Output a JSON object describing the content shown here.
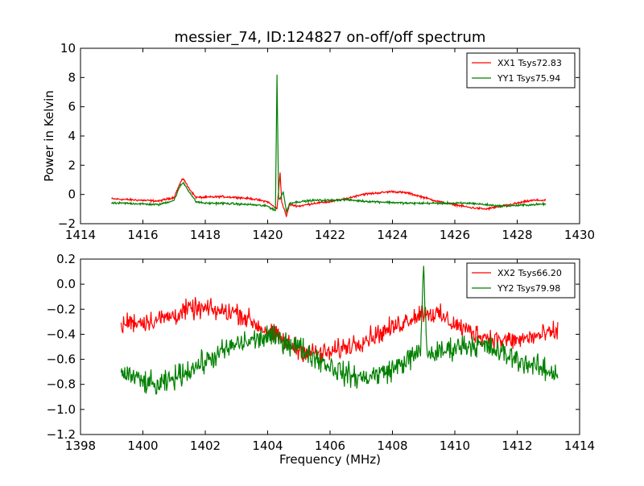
{
  "title": "messier_74, ID:124827 on-off/off spectrum",
  "chart_data": [
    {
      "type": "line",
      "title": "messier_74, ID:124827 on-off/off spectrum",
      "xlabel": "",
      "ylabel": "Power in Kelvin",
      "xlim": [
        1414,
        1430
      ],
      "ylim": [
        -2,
        10
      ],
      "xticks": [
        "1414",
        "1416",
        "1418",
        "1420",
        "1422",
        "1424",
        "1426",
        "1428",
        "1430"
      ],
      "yticks": [
        "−2",
        "0",
        "2",
        "4",
        "6",
        "8",
        "10"
      ],
      "grid": false,
      "legend_position": "top-right",
      "series": [
        {
          "name": "XX1 Tsys72.83",
          "color": "#ff0000",
          "x": [
            1415.0,
            1415.5,
            1416.0,
            1416.5,
            1417.0,
            1417.2,
            1417.3,
            1417.45,
            1417.7,
            1418.0,
            1418.5,
            1419.0,
            1419.5,
            1420.0,
            1420.3,
            1420.4,
            1420.45,
            1420.6,
            1420.7,
            1421.0,
            1421.5,
            1422.0,
            1422.5,
            1423.0,
            1423.5,
            1424.0,
            1424.5,
            1425.0,
            1425.5,
            1426.0,
            1426.5,
            1427.0,
            1427.5,
            1428.0,
            1428.5,
            1428.9
          ],
          "y": [
            -0.3,
            -0.35,
            -0.4,
            -0.45,
            -0.2,
            0.8,
            1.1,
            0.5,
            -0.2,
            -0.2,
            -0.15,
            -0.2,
            -0.3,
            -0.5,
            -1.0,
            1.5,
            -0.5,
            -1.5,
            -0.7,
            -0.8,
            -0.6,
            -0.5,
            -0.3,
            0.0,
            0.1,
            0.2,
            0.1,
            -0.2,
            -0.5,
            -0.7,
            -0.9,
            -1.0,
            -0.8,
            -0.6,
            -0.4,
            -0.4
          ]
        },
        {
          "name": "YY1 Tsys75.94",
          "color": "#008000",
          "x": [
            1415.0,
            1415.5,
            1416.0,
            1416.5,
            1417.0,
            1417.2,
            1417.3,
            1417.45,
            1417.7,
            1418.0,
            1418.5,
            1419.0,
            1419.5,
            1420.0,
            1420.25,
            1420.3,
            1420.35,
            1420.4,
            1420.5,
            1420.6,
            1420.7,
            1421.0,
            1421.5,
            1422.0,
            1422.5,
            1423.0,
            1423.5,
            1424.0,
            1424.5,
            1425.0,
            1425.5,
            1426.0,
            1426.5,
            1427.0,
            1427.5,
            1428.0,
            1428.5,
            1428.9
          ],
          "y": [
            -0.6,
            -0.6,
            -0.65,
            -0.7,
            -0.4,
            0.6,
            0.8,
            0.3,
            -0.5,
            -0.6,
            -0.6,
            -0.65,
            -0.7,
            -0.8,
            -1.1,
            8.2,
            -0.2,
            -0.3,
            0.2,
            -1.2,
            -0.6,
            -0.5,
            -0.4,
            -0.4,
            -0.35,
            -0.45,
            -0.5,
            -0.55,
            -0.6,
            -0.6,
            -0.6,
            -0.6,
            -0.6,
            -0.7,
            -0.8,
            -0.75,
            -0.7,
            -0.65
          ]
        }
      ]
    },
    {
      "type": "line",
      "title": "",
      "xlabel": "Frequency (MHz)",
      "ylabel": "",
      "xlim": [
        1398,
        1414
      ],
      "ylim": [
        -1.2,
        0.2
      ],
      "xticks": [
        "1398",
        "1400",
        "1402",
        "1404",
        "1406",
        "1408",
        "1410",
        "1412",
        "1414"
      ],
      "yticks": [
        "−1.2",
        "−1.0",
        "−0.8",
        "−0.6",
        "−0.4",
        "−0.2",
        "0.0",
        "0.2"
      ],
      "grid": false,
      "legend_position": "top-right",
      "series": [
        {
          "name": "XX2 Tsys66.20",
          "color": "#ff0000",
          "x": [
            1399.3,
            1399.5,
            1400.0,
            1400.5,
            1401.0,
            1401.5,
            1402.0,
            1402.5,
            1403.0,
            1403.5,
            1404.0,
            1404.5,
            1405.0,
            1405.5,
            1406.0,
            1406.5,
            1407.0,
            1407.5,
            1408.0,
            1408.5,
            1409.0,
            1409.5,
            1410.0,
            1410.5,
            1411.0,
            1411.5,
            1412.0,
            1412.5,
            1413.0,
            1413.3
          ],
          "y": [
            -0.35,
            -0.3,
            -0.3,
            -0.28,
            -0.25,
            -0.2,
            -0.2,
            -0.22,
            -0.22,
            -0.3,
            -0.38,
            -0.45,
            -0.52,
            -0.55,
            -0.55,
            -0.5,
            -0.45,
            -0.4,
            -0.35,
            -0.28,
            -0.22,
            -0.25,
            -0.32,
            -0.38,
            -0.42,
            -0.45,
            -0.45,
            -0.42,
            -0.4,
            -0.38
          ],
          "noise": 0.07
        },
        {
          "name": "YY2 Tsys79.98",
          "color": "#008000",
          "x": [
            1399.3,
            1399.5,
            1400.0,
            1400.5,
            1401.0,
            1401.5,
            1402.0,
            1402.5,
            1403.0,
            1403.5,
            1404.0,
            1404.5,
            1405.0,
            1405.5,
            1406.0,
            1406.5,
            1407.0,
            1407.5,
            1408.0,
            1408.5,
            1408.9,
            1409.0,
            1409.1,
            1409.5,
            1410.0,
            1410.5,
            1411.0,
            1411.5,
            1412.0,
            1412.5,
            1413.0,
            1413.3
          ],
          "y": [
            -0.7,
            -0.72,
            -0.78,
            -0.82,
            -0.75,
            -0.68,
            -0.62,
            -0.55,
            -0.48,
            -0.45,
            -0.42,
            -0.45,
            -0.5,
            -0.58,
            -0.65,
            -0.72,
            -0.75,
            -0.72,
            -0.68,
            -0.6,
            -0.55,
            0.18,
            -0.55,
            -0.55,
            -0.5,
            -0.48,
            -0.5,
            -0.55,
            -0.6,
            -0.65,
            -0.7,
            -0.7
          ],
          "noise": 0.08
        }
      ]
    }
  ]
}
